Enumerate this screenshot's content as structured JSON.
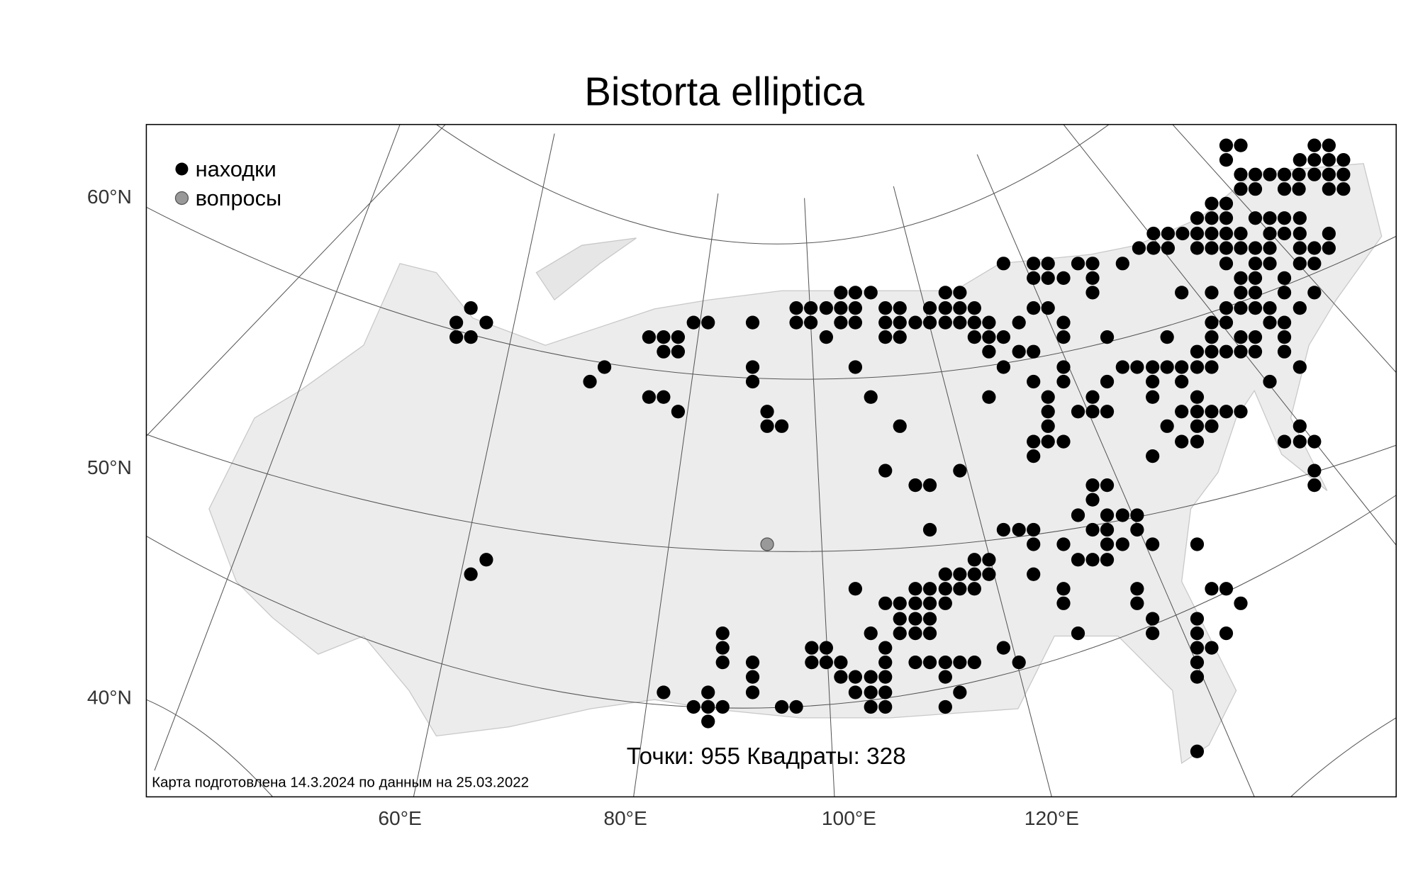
{
  "title": "Bistorta elliptica",
  "legend": [
    "находки",
    "вопросы"
  ],
  "lat_labels": [
    "60°N",
    "50°N",
    "40°N"
  ],
  "lon_labels": [
    "60°E",
    "80°E",
    "100°E",
    "120°E"
  ],
  "stats": "Точки: 955 Квадраты: 328",
  "footer": "Карта подготовлена 14.3.2024 по данным на 25.03.2022"
}
